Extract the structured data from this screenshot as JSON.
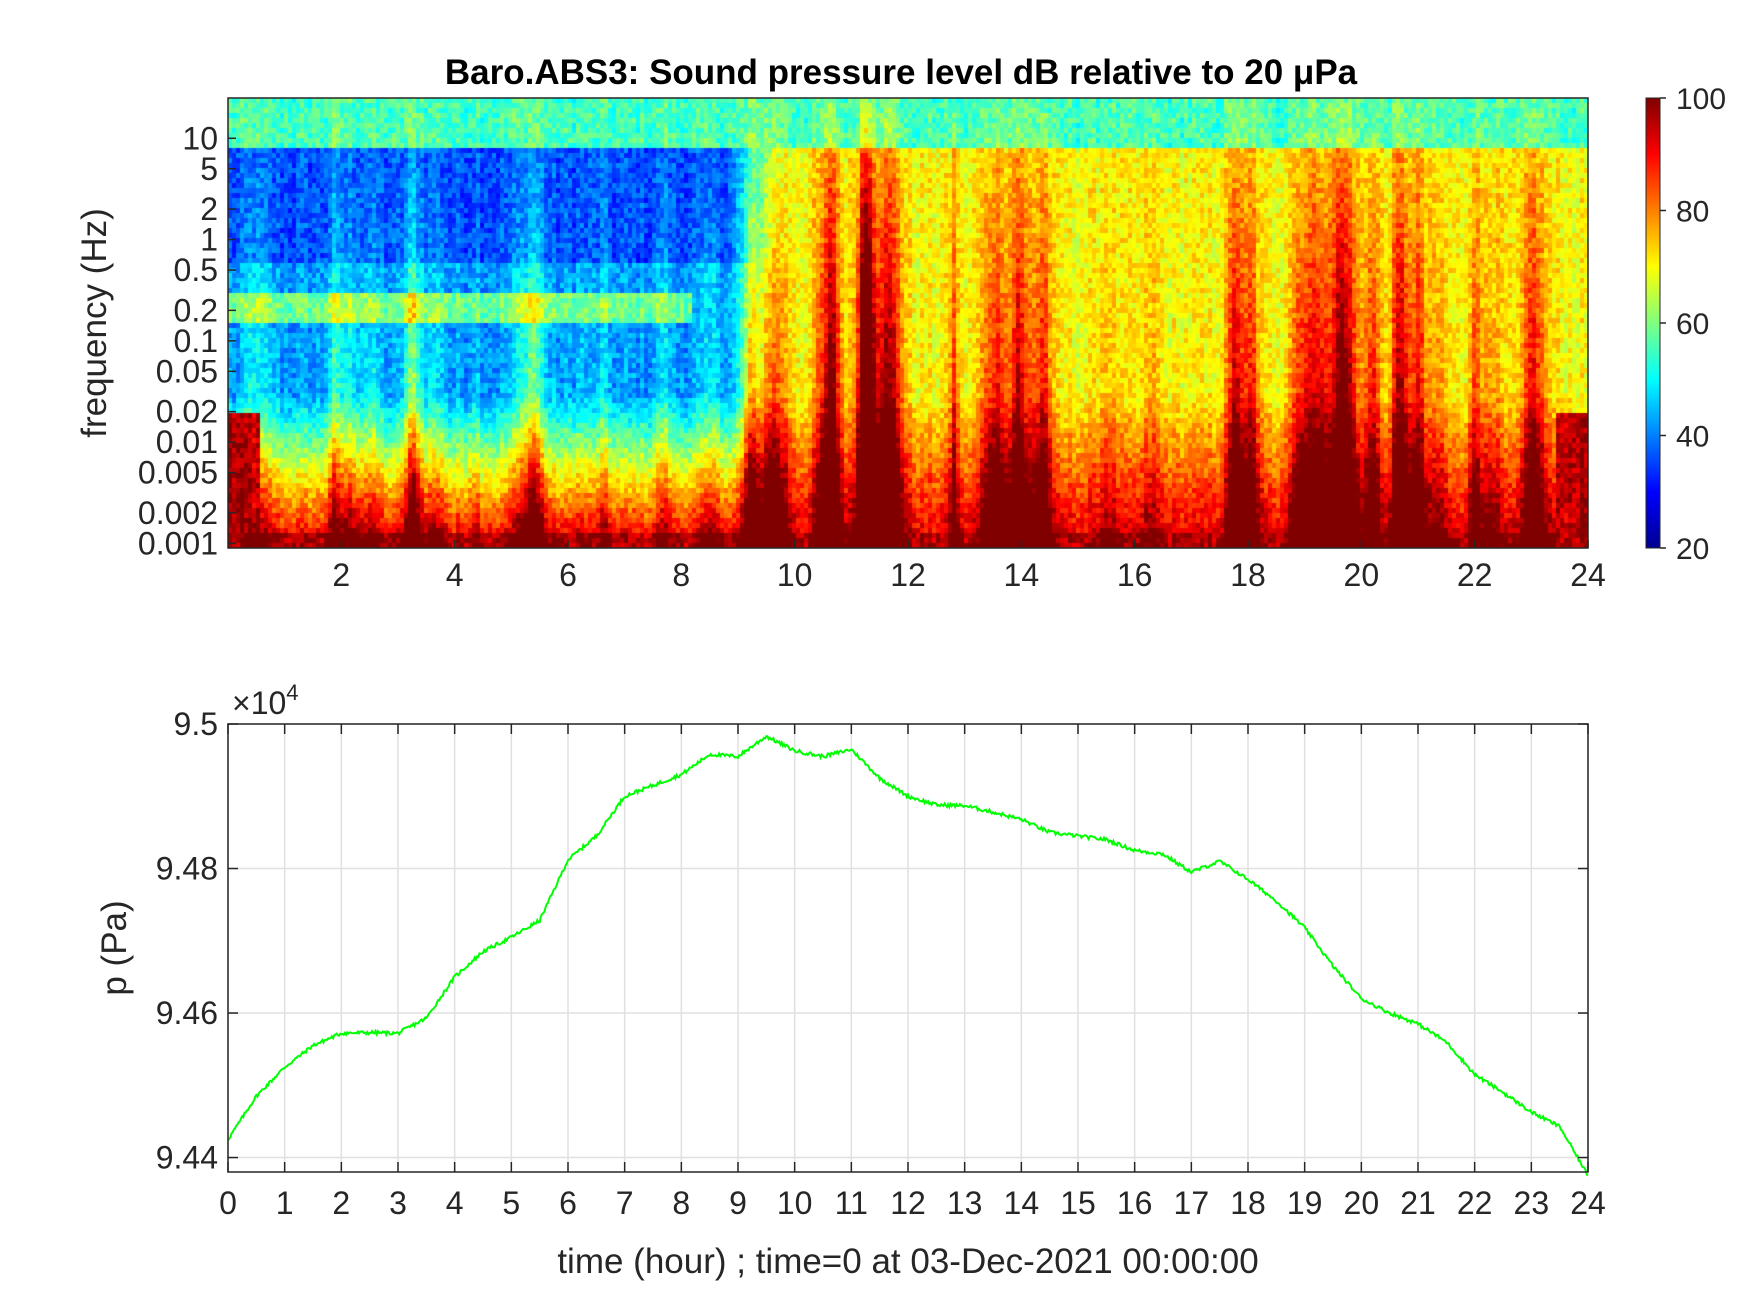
{
  "chart_data": [
    {
      "type": "heatmap",
      "title": "Baro.ABS3: Sound pressure level dB relative to 20 μPa",
      "xlabel": "",
      "ylabel": "frequency (Hz)",
      "xlim": [
        0,
        24
      ],
      "x_ticks": [
        2,
        4,
        6,
        8,
        10,
        12,
        14,
        16,
        18,
        20,
        22,
        24
      ],
      "y_scale": "log",
      "ylim": [
        0.0009,
        25
      ],
      "y_ticks": [
        {
          "value": 0.001,
          "label": "0.001"
        },
        {
          "value": 0.002,
          "label": "0.002"
        },
        {
          "value": 0.005,
          "label": "0.005"
        },
        {
          "value": 0.01,
          "label": "0.01"
        },
        {
          "value": 0.02,
          "label": "0.02"
        },
        {
          "value": 0.05,
          "label": "0.05"
        },
        {
          "value": 0.1,
          "label": "0.1"
        },
        {
          "value": 0.2,
          "label": "0.2"
        },
        {
          "value": 0.5,
          "label": "0.5"
        },
        {
          "value": 1,
          "label": "1"
        },
        {
          "value": 2,
          "label": "2"
        },
        {
          "value": 5,
          "label": "5"
        },
        {
          "value": 10,
          "label": "10"
        }
      ],
      "colormap": "jet",
      "colorbar": {
        "range": [
          20,
          100
        ],
        "ticks": [
          20,
          40,
          60,
          80,
          100
        ]
      },
      "level_profile": {
        "description_free_data": true,
        "low_freq_band_db": 88,
        "quiet_period_hours": [
          0,
          9
        ],
        "active_period_hours": [
          9,
          24
        ],
        "quiet_high_freq_db": 42,
        "active_high_freq_db": 70,
        "peak_event_hour": 11.3
      }
    },
    {
      "type": "line",
      "title": "",
      "xlabel": "time (hour) ; time=0 at 03-Dec-2021 00:00:00",
      "ylabel": "p (Pa)",
      "xlim": [
        0,
        24
      ],
      "x_ticks": [
        0,
        1,
        2,
        3,
        4,
        5,
        6,
        7,
        8,
        9,
        10,
        11,
        12,
        13,
        14,
        15,
        16,
        17,
        18,
        19,
        20,
        21,
        22,
        23,
        24
      ],
      "ylim": [
        94380,
        95000
      ],
      "y_ticks": [
        {
          "value": 94400,
          "label": "9.44"
        },
        {
          "value": 94600,
          "label": "9.46"
        },
        {
          "value": 94800,
          "label": "9.48"
        },
        {
          "value": 95000,
          "label": "9.5"
        }
      ],
      "y_exponent_label": "×10",
      "y_exponent_power": "4",
      "grid": true,
      "series": [
        {
          "color": "#00ff00",
          "x": [
            0,
            0.5,
            1,
            1.5,
            2,
            2.5,
            3,
            3.5,
            4,
            4.5,
            5,
            5.5,
            6,
            6.5,
            7,
            7.5,
            8,
            8.5,
            9,
            9.5,
            10,
            10.5,
            11,
            11.5,
            12,
            12.5,
            13,
            13.5,
            14,
            14.5,
            15,
            15.5,
            16,
            16.5,
            17,
            17.5,
            18,
            18.5,
            19,
            19.5,
            20,
            20.5,
            21,
            21.5,
            22,
            22.5,
            23,
            23.5,
            24
          ],
          "values": [
            94425,
            94485,
            94525,
            94555,
            94572,
            94573,
            94572,
            94593,
            94650,
            94685,
            94705,
            94728,
            94812,
            94845,
            94900,
            94915,
            94930,
            94958,
            94955,
            94983,
            94963,
            94955,
            94965,
            94925,
            94900,
            94888,
            94887,
            94878,
            94868,
            94850,
            94845,
            94840,
            94825,
            94820,
            94795,
            94810,
            94785,
            94755,
            94718,
            94665,
            94620,
            94600,
            94585,
            94560,
            94515,
            94490,
            94463,
            94443,
            94375
          ]
        }
      ]
    }
  ]
}
